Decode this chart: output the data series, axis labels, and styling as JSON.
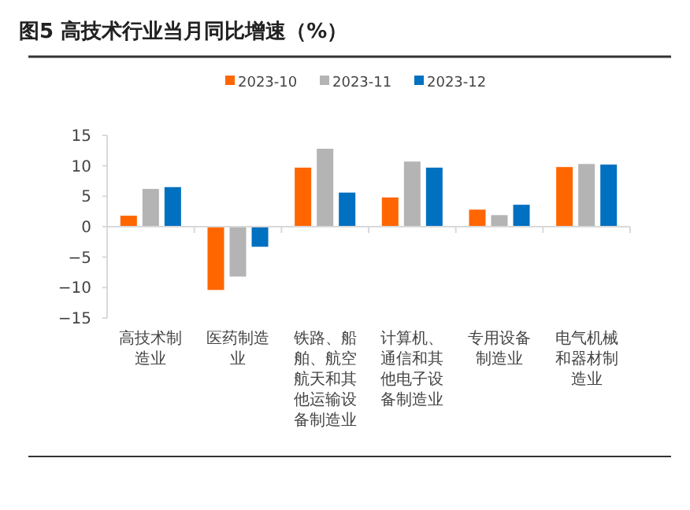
{
  "chart_data": {
    "type": "bar",
    "title": "图5  高技术行业当月同比增速（%）",
    "categories": [
      "高技术制造业",
      "医药制造业",
      "铁路、船舶、航空航天和其他运输设备制造业",
      "计算机、通信和其他电子设备制造业",
      "专用设备制造业",
      "电气机械和器材制造业"
    ],
    "series": [
      {
        "name": "2023-10",
        "color": "#ff6600",
        "values": [
          1.8,
          -10.4,
          9.7,
          4.8,
          2.8,
          9.8
        ]
      },
      {
        "name": "2023-11",
        "color": "#b4b4b4",
        "values": [
          6.2,
          -8.2,
          12.8,
          10.7,
          1.9,
          10.3
        ]
      },
      {
        "name": "2023-12",
        "color": "#0070c0",
        "values": [
          6.5,
          -3.3,
          5.6,
          9.7,
          3.6,
          10.2
        ]
      }
    ],
    "ylim": [
      -15,
      15
    ],
    "yticks": [
      -15,
      -10,
      -5,
      0,
      5,
      10,
      15
    ],
    "legend": "top"
  }
}
